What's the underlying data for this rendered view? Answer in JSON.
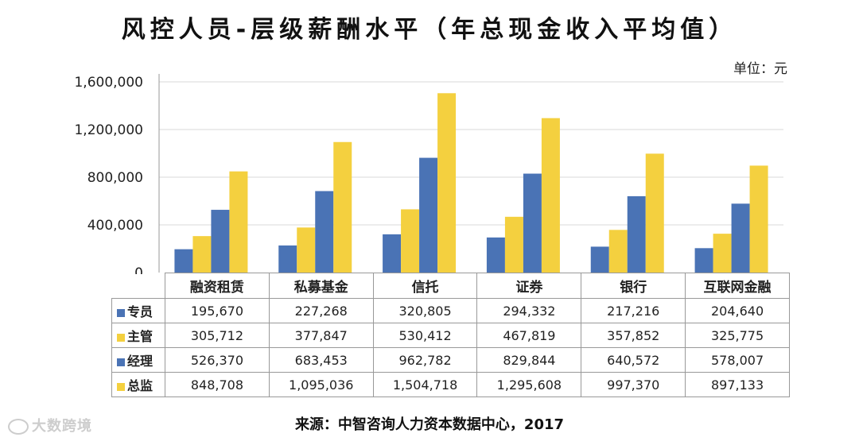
{
  "title": "风控人员-层级薪酬水平（年总现金收入平均值）",
  "unit": "单位：元",
  "source": "来源：中智咨询人力资本数据中心，2017",
  "watermark": "大数跨境",
  "colors": {
    "blue": "#4A73B5",
    "yellow": "#F4D03F",
    "grid": "#d9d9d9",
    "axis": "#999999"
  },
  "chart_data": {
    "type": "bar",
    "categories": [
      "融资租赁",
      "私募基金",
      "信托",
      "证券",
      "银行",
      "互联网金融"
    ],
    "series": [
      {
        "name": "专员",
        "values": [
          195670,
          227268,
          320805,
          294332,
          217216,
          204640
        ],
        "color": "#4A73B5"
      },
      {
        "name": "主管",
        "values": [
          305712,
          377847,
          530412,
          467819,
          357852,
          325775
        ],
        "color": "#F4D03F"
      },
      {
        "name": "经理",
        "values": [
          526370,
          683453,
          962782,
          829844,
          640572,
          578007
        ],
        "color": "#4A73B5"
      },
      {
        "name": "总监",
        "values": [
          848708,
          1095036,
          1504718,
          1295608,
          997370,
          897133
        ],
        "color": "#F4D03F"
      }
    ],
    "ylim": [
      0,
      1600000
    ],
    "yticks": [
      "0",
      "400,000",
      "800,000",
      "1,200,000",
      "1,600,000"
    ],
    "table": [
      [
        "195,670",
        "227,268",
        "320,805",
        "294,332",
        "217,216",
        "204,640"
      ],
      [
        "305,712",
        "377,847",
        "530,412",
        "467,819",
        "357,852",
        "325,775"
      ],
      [
        "526,370",
        "683,453",
        "962,782",
        "829,844",
        "640,572",
        "578,007"
      ],
      [
        "848,708",
        "1,095,036",
        "1,504,718",
        "1,295,608",
        "997,370",
        "897,133"
      ]
    ],
    "grid": true,
    "legend": "in-table"
  }
}
